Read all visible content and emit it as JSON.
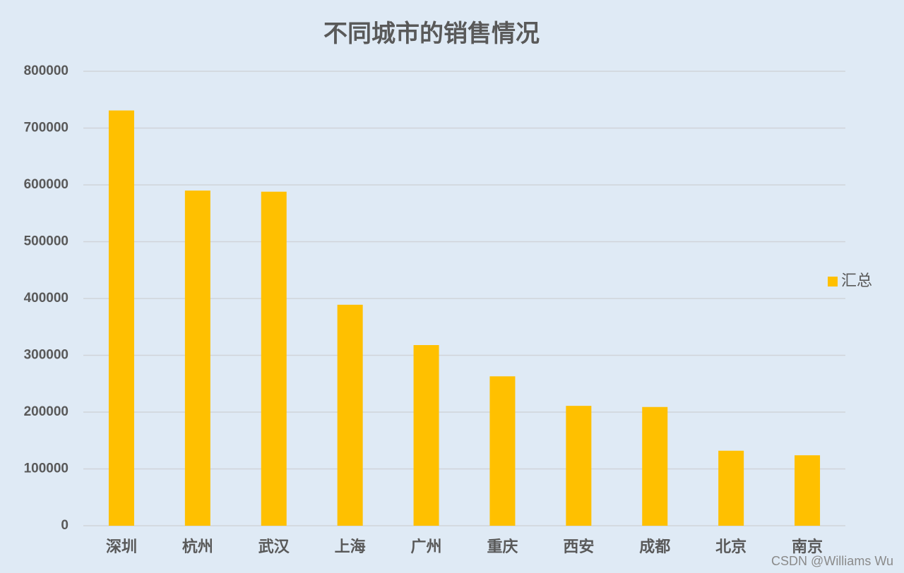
{
  "chart_data": {
    "type": "bar",
    "title": "不同城市的销售情况",
    "categories": [
      "深圳",
      "杭州",
      "武汉",
      "上海",
      "广州",
      "重庆",
      "西安",
      "成都",
      "北京",
      "南京"
    ],
    "series": [
      {
        "name": "汇总",
        "color": "#ffc000",
        "values": [
          731000,
          590000,
          588000,
          389000,
          318000,
          263000,
          211000,
          209000,
          132000,
          124000
        ]
      }
    ],
    "ylim": [
      0,
      800000
    ],
    "yticks": [
      0,
      100000,
      200000,
      300000,
      400000,
      500000,
      600000,
      700000,
      800000
    ],
    "grid": true,
    "legend": "right",
    "watermark": "CSDN @Williams Wu"
  }
}
